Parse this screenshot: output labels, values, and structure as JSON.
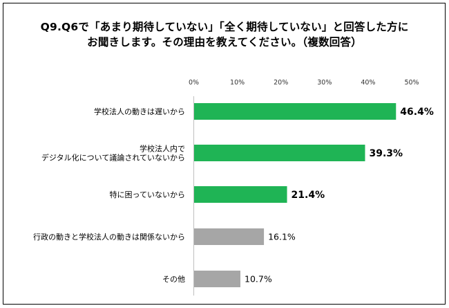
{
  "title": {
    "line1": "Q9.Q6で「あまり期待していない」「全く期待していない」と回答した方に",
    "line2": "お聞きします。その理由を教えてください。（複数回答）"
  },
  "chart_data": {
    "type": "bar",
    "orientation": "horizontal",
    "title": "Q9.Q6で「あまり期待していない」「全く期待していない」と回答した方にお聞きします。その理由を教えてください。（複数回答）",
    "xlim": [
      0,
      50
    ],
    "x_ticks": [
      "0%",
      "10%",
      "20%",
      "30%",
      "40%",
      "50%"
    ],
    "tick_position": "top",
    "grid": false,
    "categories": [
      [
        "学校法人の動きは遅いから"
      ],
      [
        "学校法人内で",
        "デジタル化について議論されていないから"
      ],
      [
        "特に困っていないから"
      ],
      [
        "行政の動きと学校法人の動きは関係ないから"
      ],
      [
        "その他"
      ]
    ],
    "values": [
      46.4,
      39.3,
      21.4,
      16.1,
      10.7
    ],
    "value_labels": [
      "46.4%",
      "39.3%",
      "21.4%",
      "16.1%",
      "10.7%"
    ],
    "bar_colors": [
      "#1fb455",
      "#1fb455",
      "#1fb455",
      "#a6a6a6",
      "#a6a6a6"
    ],
    "label_bold": [
      true,
      true,
      true,
      false,
      false
    ]
  }
}
